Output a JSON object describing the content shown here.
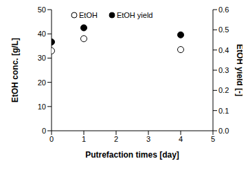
{
  "chart_data": {
    "type": "scatter",
    "x_label": "Putrefaction times [day]",
    "y_label": "EtOH conc. [g/L]",
    "y2_label": "EtOH yield [-]",
    "xlim": [
      0,
      5
    ],
    "xticks": [
      0,
      1,
      2,
      3,
      4,
      5
    ],
    "ylim": [
      0,
      50
    ],
    "yticks": [
      0,
      10,
      20,
      30,
      40,
      50
    ],
    "y2lim": [
      0,
      0.6
    ],
    "y2ticks": [
      {
        "value": 0,
        "label": "0.0"
      },
      {
        "value": 0.1,
        "label": "0.1"
      },
      {
        "value": 0.2,
        "label": "0.2"
      },
      {
        "value": 0.3,
        "label": "0.3"
      },
      {
        "value": 0.4,
        "label": "0.4"
      },
      {
        "value": 0.5,
        "label": "0.5"
      },
      {
        "value": 0.6,
        "label": "0.6"
      }
    ],
    "grid": false,
    "legend": "top",
    "series": [
      {
        "name": "EtOH",
        "color": "#000000",
        "marker": "open",
        "x": [
          0,
          1,
          4
        ],
        "values": [
          33,
          38,
          33.5
        ]
      },
      {
        "name": "EtOH yield",
        "color": "#000000",
        "marker": "filled",
        "axis": "y2",
        "x": [
          0,
          1,
          4
        ],
        "values": [
          0.44,
          0.51,
          0.475
        ]
      }
    ]
  }
}
